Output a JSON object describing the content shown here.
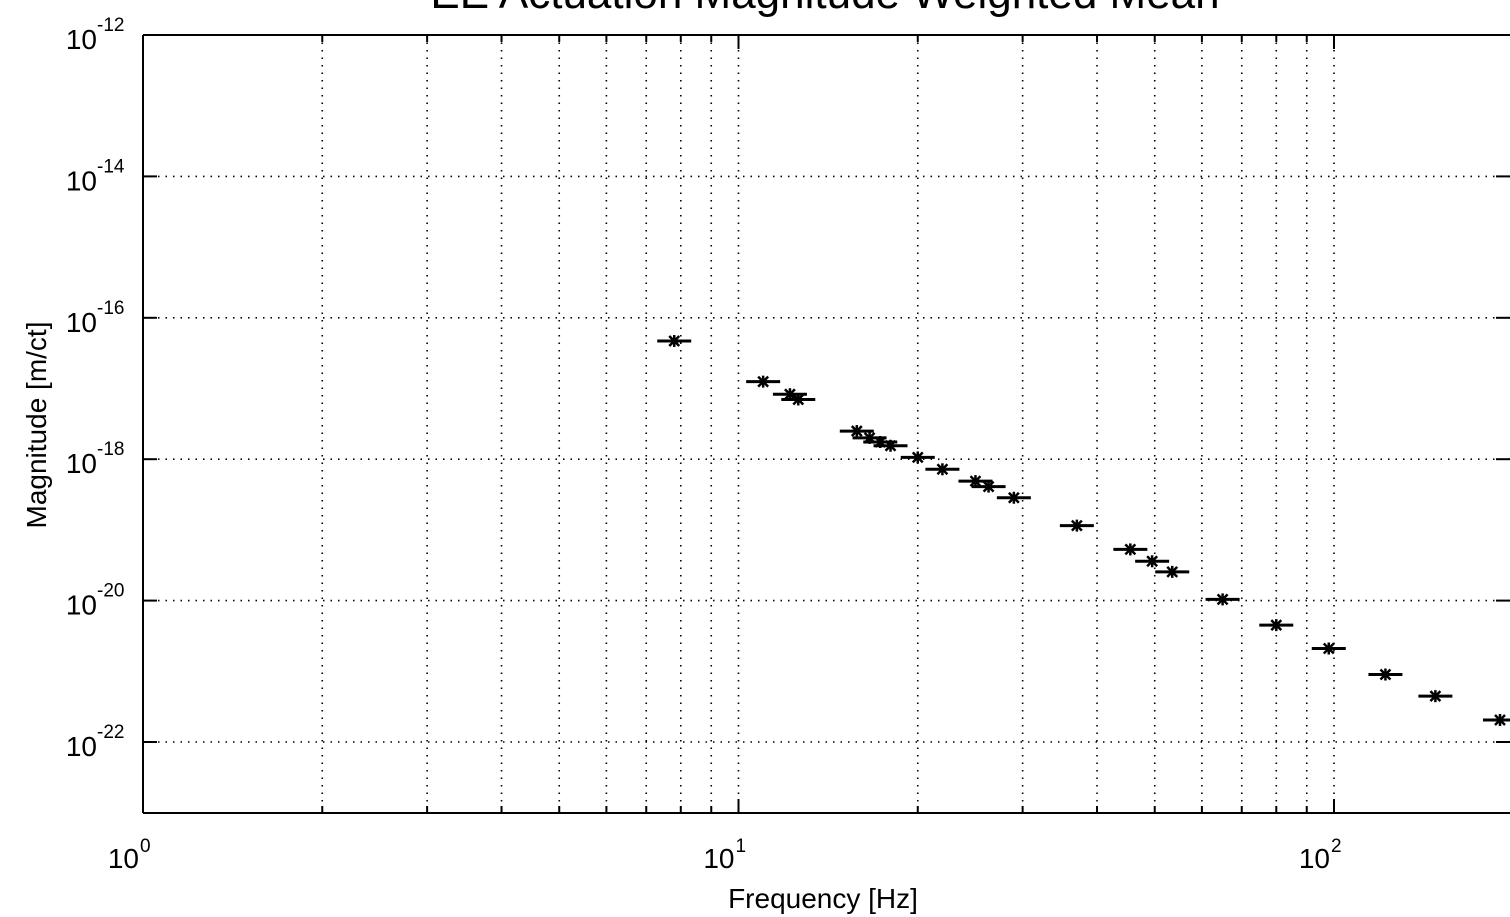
{
  "chart_data": {
    "type": "scatter",
    "title": "EE Actuation Magnitude Weighted Mean",
    "xlabel": "Frequency [Hz]",
    "ylabel": "Magnitude [m/ct]",
    "xscale": "log",
    "yscale": "log",
    "xlim": [
      1,
      200
    ],
    "ylim": [
      1e-23,
      1e-12
    ],
    "grid": true,
    "x_ticks": [
      {
        "base": "10",
        "exp": "0",
        "value": 1
      },
      {
        "base": "10",
        "exp": "1",
        "value": 10
      },
      {
        "base": "10",
        "exp": "2",
        "value": 100
      }
    ],
    "y_ticks": [
      {
        "base": "10",
        "exp": "-12",
        "value": 1e-12
      },
      {
        "base": "10",
        "exp": "-14",
        "value": 1e-14
      },
      {
        "base": "10",
        "exp": "-16",
        "value": 1e-16
      },
      {
        "base": "10",
        "exp": "-18",
        "value": 1e-18
      },
      {
        "base": "10",
        "exp": "-20",
        "value": 1e-20
      },
      {
        "base": "10",
        "exp": "-22",
        "value": 1e-22
      }
    ],
    "marker_color": "#000000",
    "points": [
      {
        "x": 7.8,
        "y": 4.7e-17
      },
      {
        "x": 11.0,
        "y": 1.25e-17
      },
      {
        "x": 12.2,
        "y": 8.3e-18
      },
      {
        "x": 12.6,
        "y": 7e-18
      },
      {
        "x": 15.8,
        "y": 2.5e-18
      },
      {
        "x": 16.6,
        "y": 2e-18
      },
      {
        "x": 17.3,
        "y": 1.75e-18
      },
      {
        "x": 18.0,
        "y": 1.55e-18
      },
      {
        "x": 20.0,
        "y": 1.06e-18
      },
      {
        "x": 22.0,
        "y": 7.2e-19
      },
      {
        "x": 25.0,
        "y": 4.9e-19
      },
      {
        "x": 26.3,
        "y": 4.1e-19
      },
      {
        "x": 29.0,
        "y": 2.85e-19
      },
      {
        "x": 37.0,
        "y": 1.15e-19
      },
      {
        "x": 45.5,
        "y": 5.3e-20
      },
      {
        "x": 49.5,
        "y": 3.6e-20
      },
      {
        "x": 53.5,
        "y": 2.55e-20
      },
      {
        "x": 65.0,
        "y": 1.04e-20
      },
      {
        "x": 80.0,
        "y": 4.5e-21
      },
      {
        "x": 98.0,
        "y": 2.1e-21
      },
      {
        "x": 122.0,
        "y": 9e-22
      },
      {
        "x": 148.0,
        "y": 4.45e-22
      },
      {
        "x": 190.0,
        "y": 2.05e-22
      }
    ]
  }
}
